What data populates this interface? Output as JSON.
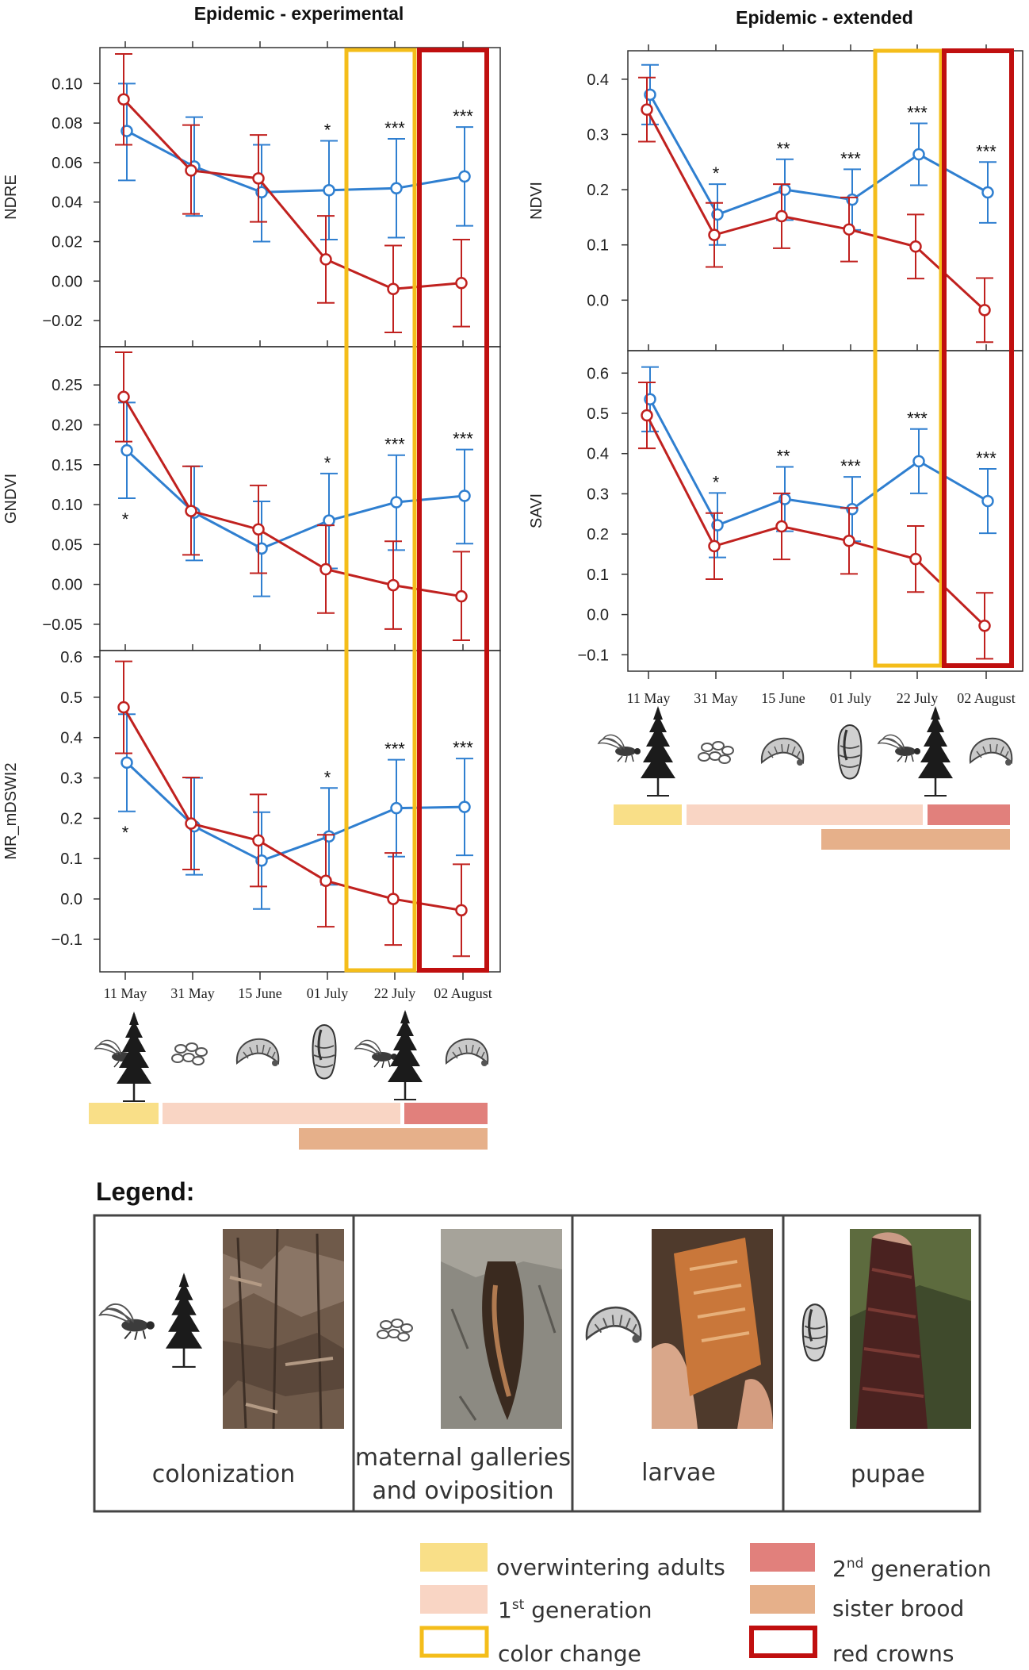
{
  "colors": {
    "control": "#2f7fd0",
    "infested": "#c0211f",
    "color_change": "#f4bd1a",
    "red_crowns": "#c00f0f",
    "overwintering": "#f9df88",
    "first_gen": "#f9d5c4",
    "second_gen": "#e1807c",
    "sister_brood": "#e6b08a"
  },
  "chart_data": [
    {
      "type": "line",
      "title": "Epidemic - experimental",
      "xlabel": "",
      "categories": [
        "11 May",
        "31 May",
        "15 June",
        "01 July",
        "22 July",
        "02 August"
      ],
      "panels": [
        {
          "ylabel": "NDRE",
          "ylim": [
            -0.03,
            0.115
          ],
          "yticks": [
            "0.10",
            "0.08",
            "0.06",
            "0.04",
            "0.02",
            "0.00",
            "−0.02"
          ],
          "ytick_values": [
            0.1,
            0.08,
            0.06,
            0.04,
            0.02,
            0.0,
            -0.02
          ],
          "significance": [
            "",
            "",
            "",
            "*",
            "***",
            "***"
          ],
          "series": [
            {
              "values": [
                0.076,
                0.058,
                0.045,
                0.046,
                0.047,
                0.053
              ],
              "lower": [
                0.051,
                0.033,
                0.02,
                0.021,
                0.022,
                0.028
              ],
              "upper": [
                0.1,
                0.083,
                0.069,
                0.071,
                0.072,
                0.078
              ],
              "color": "#2f7fd0"
            },
            {
              "values": [
                0.092,
                0.056,
                0.052,
                0.011,
                -0.004,
                -0.001
              ],
              "lower": [
                0.069,
                0.034,
                0.03,
                -0.011,
                -0.026,
                -0.023
              ],
              "upper": [
                0.115,
                0.079,
                0.074,
                0.033,
                0.018,
                0.021
              ],
              "color": "#c0211f"
            }
          ]
        },
        {
          "ylabel": "GNDVI",
          "ylim": [
            -0.075,
            0.29
          ],
          "yticks": [
            "0.25",
            "0.20",
            "0.15",
            "0.10",
            "0.05",
            "0.00",
            "−0.05"
          ],
          "ytick_values": [
            0.25,
            0.2,
            0.15,
            0.1,
            0.05,
            0.0,
            -0.05
          ],
          "significance": [
            "*",
            "",
            "",
            "*",
            "***",
            "***"
          ],
          "significance_below": [
            true,
            false,
            false,
            false,
            false,
            false
          ],
          "series": [
            {
              "values": [
                0.168,
                0.09,
                0.045,
                0.08,
                0.103,
                0.111
              ],
              "lower": [
                0.108,
                0.03,
                -0.015,
                0.02,
                0.043,
                0.051
              ],
              "upper": [
                0.228,
                0.148,
                0.104,
                0.139,
                0.162,
                0.169
              ],
              "color": "#2f7fd0"
            },
            {
              "values": [
                0.235,
                0.092,
                0.069,
                0.019,
                -0.001,
                -0.015
              ],
              "lower": [
                0.179,
                0.037,
                0.014,
                -0.036,
                -0.056,
                -0.07
              ],
              "upper": [
                0.291,
                0.148,
                0.124,
                0.074,
                0.054,
                0.041
              ],
              "color": "#c0211f"
            }
          ]
        },
        {
          "ylabel": "MR_mDSWI2",
          "ylim": [
            -0.165,
            0.6
          ],
          "yticks": [
            "0.6",
            "0.5",
            "0.4",
            "0.3",
            "0.2",
            "0.1",
            "0.0",
            "−0.1"
          ],
          "ytick_values": [
            0.6,
            0.5,
            0.4,
            0.3,
            0.2,
            0.1,
            0.0,
            -0.1
          ],
          "significance": [
            "*",
            "",
            "",
            "*",
            "***",
            "***"
          ],
          "significance_below": [
            true,
            false,
            false,
            false,
            false,
            false
          ],
          "series": [
            {
              "values": [
                0.338,
                0.18,
                0.095,
                0.155,
                0.225,
                0.228
              ],
              "lower": [
                0.217,
                0.06,
                -0.025,
                0.035,
                0.105,
                0.108
              ],
              "upper": [
                0.458,
                0.3,
                0.215,
                0.275,
                0.345,
                0.348
              ],
              "color": "#2f7fd0"
            },
            {
              "values": [
                0.475,
                0.187,
                0.145,
                0.045,
                0.0,
                -0.028
              ],
              "lower": [
                0.361,
                0.073,
                0.031,
                -0.069,
                -0.114,
                -0.142
              ],
              "upper": [
                0.589,
                0.301,
                0.259,
                0.159,
                0.114,
                0.086
              ],
              "color": "#c0211f"
            }
          ]
        }
      ]
    },
    {
      "type": "line",
      "title": "Epidemic - extended",
      "xlabel": "",
      "categories": [
        "11 May",
        "31 May",
        "15 June",
        "01 July",
        "22 July",
        "02 August"
      ],
      "panels": [
        {
          "ylabel": "NDVI",
          "ylim": [
            -0.08,
            0.44
          ],
          "yticks": [
            "0.4",
            "0.3",
            "0.2",
            "0.1",
            "0.0"
          ],
          "ytick_values": [
            0.4,
            0.3,
            0.2,
            0.1,
            0.0
          ],
          "significance": [
            "",
            "*",
            "**",
            "***",
            "***",
            "***"
          ],
          "series": [
            {
              "values": [
                0.372,
                0.155,
                0.2,
                0.182,
                0.264,
                0.195
              ],
              "lower": [
                0.318,
                0.1,
                0.145,
                0.127,
                0.208,
                0.14
              ],
              "upper": [
                0.426,
                0.21,
                0.255,
                0.237,
                0.32,
                0.25
              ],
              "color": "#2f7fd0"
            },
            {
              "values": [
                0.345,
                0.118,
                0.152,
                0.128,
                0.097,
                -0.018
              ],
              "lower": [
                0.287,
                0.06,
                0.094,
                0.07,
                0.039,
                -0.076
              ],
              "upper": [
                0.403,
                0.176,
                0.21,
                0.186,
                0.155,
                0.04
              ],
              "color": "#c0211f"
            }
          ]
        },
        {
          "ylabel": "SAVI",
          "ylim": [
            -0.125,
            0.64
          ],
          "yticks": [
            "0.6",
            "0.5",
            "0.4",
            "0.3",
            "0.2",
            "0.1",
            "0.0",
            "−0.1"
          ],
          "ytick_values": [
            0.6,
            0.5,
            0.4,
            0.3,
            0.2,
            0.1,
            0.0,
            -0.1
          ],
          "significance": [
            "",
            "*",
            "**",
            "***",
            "***",
            "***"
          ],
          "series": [
            {
              "values": [
                0.535,
                0.222,
                0.287,
                0.262,
                0.381,
                0.282
              ],
              "lower": [
                0.455,
                0.142,
                0.207,
                0.182,
                0.301,
                0.202
              ],
              "upper": [
                0.615,
                0.302,
                0.367,
                0.342,
                0.461,
                0.362
              ],
              "color": "#2f7fd0"
            },
            {
              "values": [
                0.495,
                0.17,
                0.219,
                0.183,
                0.138,
                -0.028
              ],
              "lower": [
                0.413,
                0.088,
                0.137,
                0.101,
                0.056,
                -0.11
              ],
              "upper": [
                0.577,
                0.252,
                0.301,
                0.265,
                0.22,
                0.054
              ],
              "color": "#c0211f"
            }
          ]
        }
      ]
    }
  ],
  "legend": {
    "title": "Legend:",
    "stages": [
      {
        "icon": "beetle-and-spruce-icon",
        "caption": "colonization"
      },
      {
        "icon": "eggs-icon",
        "caption": "maternal galleries",
        "caption2": "and oviposition"
      },
      {
        "icon": "larva-icon",
        "caption": "larvae"
      },
      {
        "icon": "pupa-icon",
        "caption": "pupae"
      }
    ],
    "keys": {
      "overwintering": "overwintering adults",
      "first_gen_num": "1",
      "first_gen_sup": "st",
      "first_gen_rest": " generation",
      "second_gen_num": "2",
      "second_gen_sup": "nd",
      "second_gen_rest": " generation",
      "sister_brood": "sister brood",
      "color_change": "color change",
      "red_crowns": "red crowns"
    }
  }
}
